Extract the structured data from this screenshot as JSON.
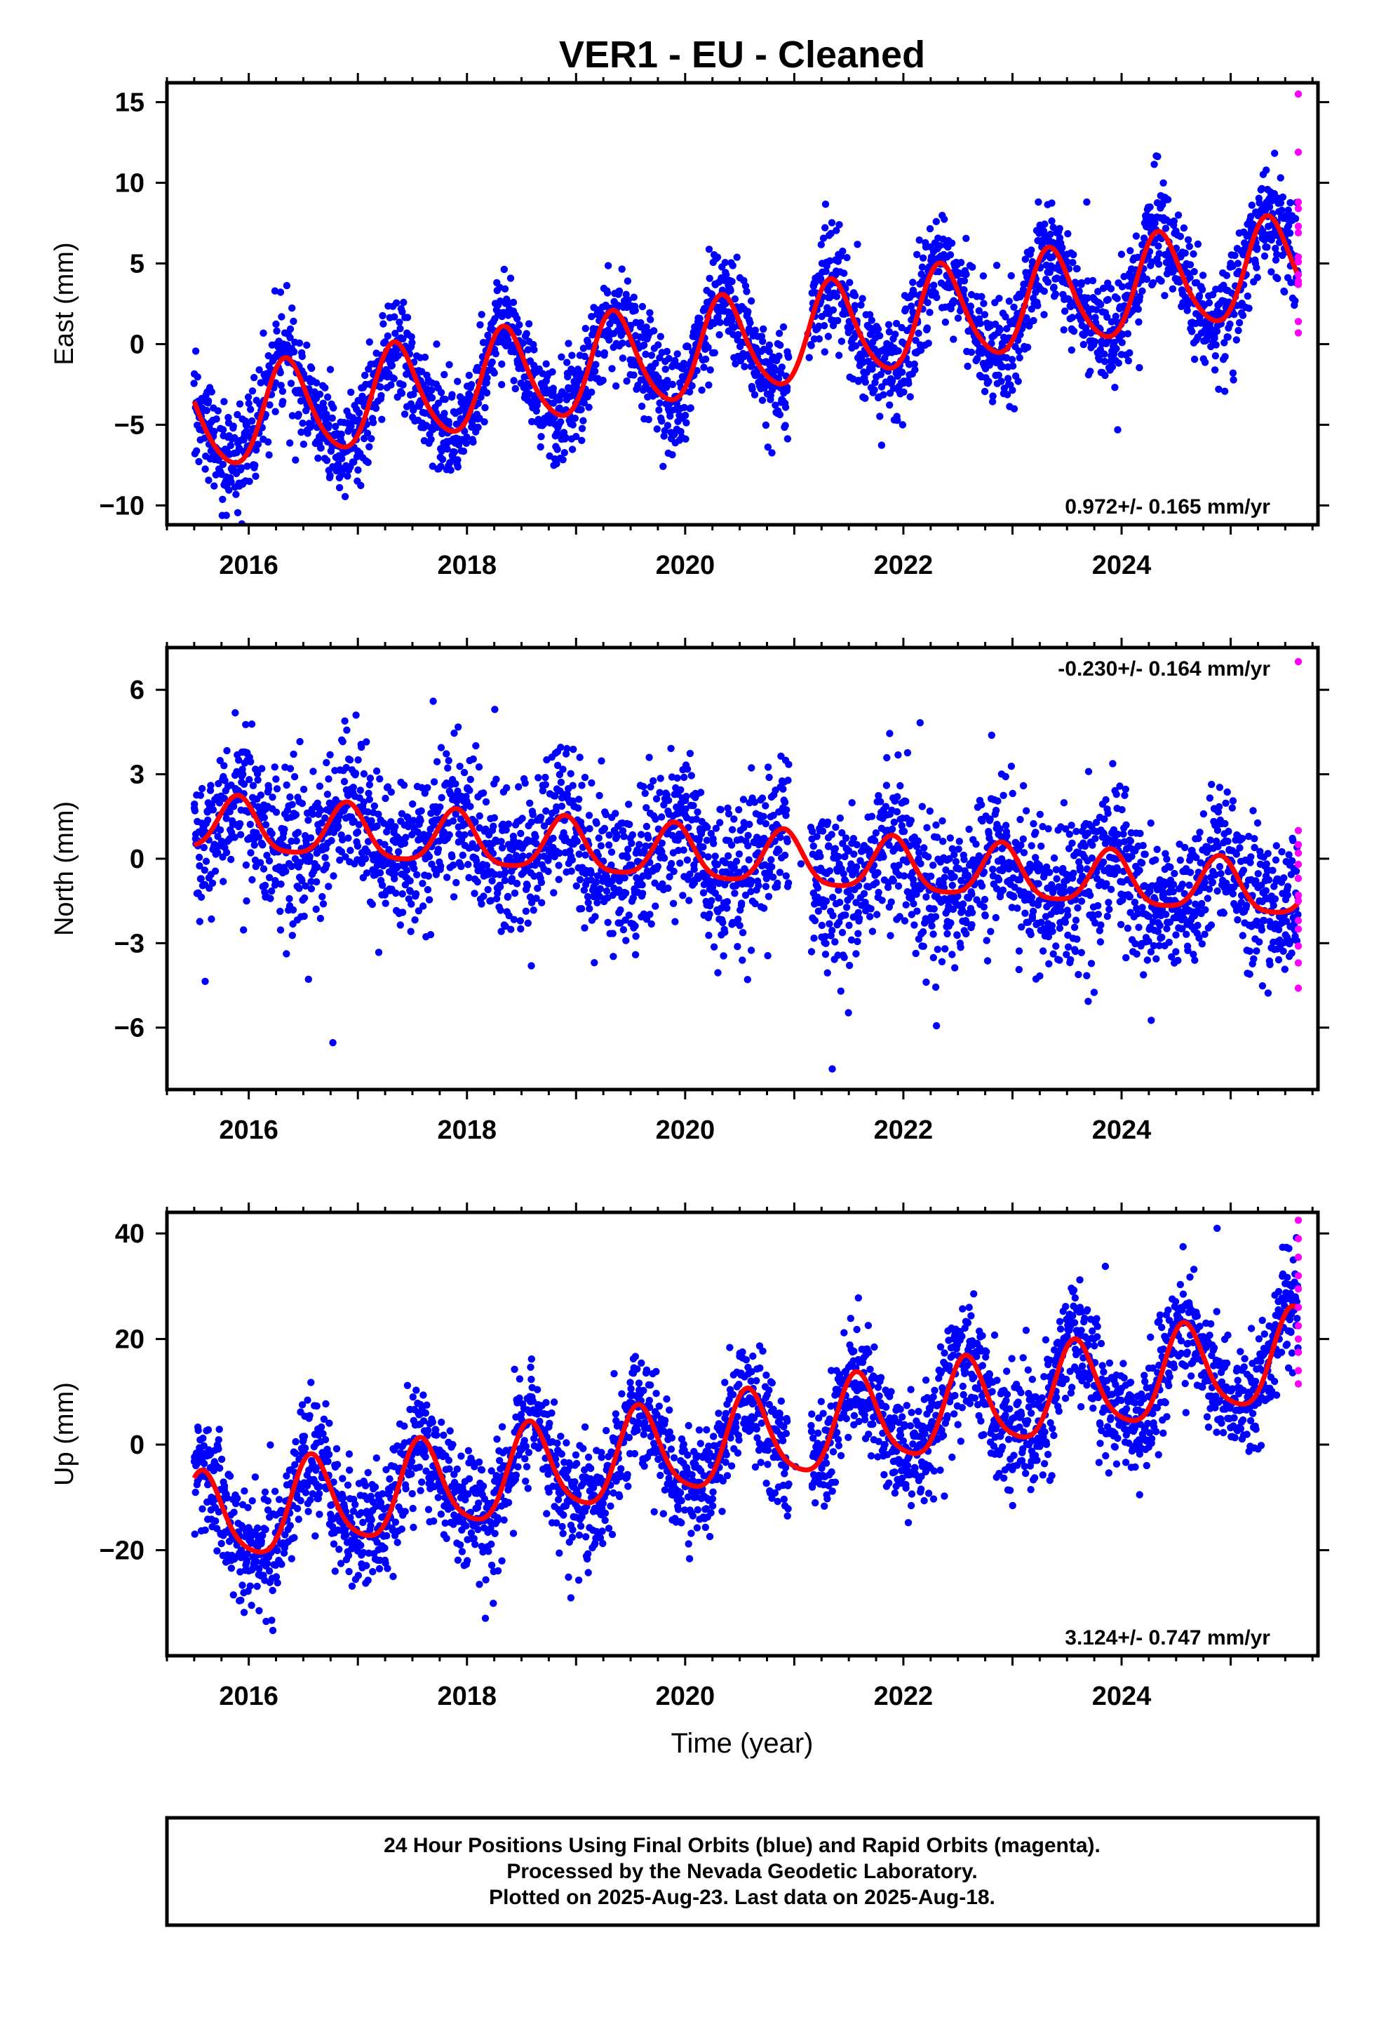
{
  "title": "VER1  - EU - Cleaned",
  "xlabel": "Time (year)",
  "footer": {
    "line1": "24 Hour Positions Using Final Orbits (blue) and Rapid Orbits (magenta).",
    "line2": "Processed by the Nevada Geodetic Laboratory.",
    "line3": "Plotted on 2025-Aug-23. Last data on 2025-Aug-18."
  },
  "colors": {
    "final": "#0000ff",
    "rapid": "#ff00ff",
    "model": "#ff0000",
    "axis": "#000000"
  },
  "chart_data": [
    {
      "type": "scatter",
      "ylabel": "East (mm)",
      "rate_label": "0.972+/- 0.165 mm/yr",
      "rate_position": "bottom-right",
      "xlim": [
        2015.25,
        2025.8
      ],
      "ylim": [
        -11.2,
        16.2
      ],
      "xticks": [
        2016,
        2018,
        2020,
        2022,
        2024
      ],
      "xtick_labels": [
        "2016",
        "2018",
        "2020",
        "2022",
        "2024"
      ],
      "yticks": [
        -10,
        -5,
        0,
        5,
        10,
        15
      ],
      "ytick_labels": [
        "−10",
        "−5",
        "0",
        "5",
        "10",
        "15"
      ],
      "model": {
        "start": 2015.5,
        "end": 2025.62,
        "trend_at_start": -5.0,
        "trend_at_end": 4.9,
        "annual_amplitude": 3.0,
        "annual_peak": 0.35,
        "semiannual_amplitude": 0.4,
        "semiannual_peak": 0.3
      },
      "scatter": {
        "spread": 1.6,
        "count": 2900,
        "gap": [
          2020.95,
          2021.15
        ]
      },
      "rapid_points": {
        "x": 2025.62,
        "values": [
          15.5,
          11.9,
          8.8,
          8.4,
          7.3,
          6.9,
          5.4,
          5.1,
          4.3,
          3.9,
          3.7,
          1.4,
          0.7
        ]
      }
    },
    {
      "type": "scatter",
      "ylabel": "North (mm)",
      "rate_label": "-0.230+/- 0.164 mm/yr",
      "rate_position": "top-right",
      "xlim": [
        2015.25,
        2025.8
      ],
      "ylim": [
        -8.2,
        7.5
      ],
      "xticks": [
        2016,
        2018,
        2020,
        2022,
        2024
      ],
      "xtick_labels": [
        "2016",
        "2018",
        "2020",
        "2022",
        "2024"
      ],
      "yticks": [
        -6,
        -3,
        0,
        3,
        6
      ],
      "ytick_labels": [
        "−6",
        "−3",
        "0",
        "3",
        "6"
      ],
      "model": {
        "start": 2015.5,
        "end": 2025.62,
        "trend_at_start": 1.2,
        "trend_at_end": -1.2,
        "annual_amplitude": 0.95,
        "annual_peak": 0.9,
        "semiannual_amplitude": 0.2,
        "semiannual_peak": 0.4
      },
      "scatter": {
        "spread": 1.3,
        "count": 2900,
        "gap": [
          2020.95,
          2021.15
        ]
      },
      "rapid_points": {
        "x": 2025.62,
        "values": [
          7.0,
          1.0,
          0.5,
          0.2,
          -0.2,
          -0.7,
          -1.3,
          -1.5,
          -2.2,
          -2.5,
          -3.1,
          -3.7,
          -4.6
        ]
      }
    },
    {
      "type": "scatter",
      "ylabel": "Up (mm)",
      "rate_label": "3.124+/- 0.747 mm/yr",
      "rate_position": "bottom-right",
      "xlim": [
        2015.25,
        2025.8
      ],
      "ylim": [
        -40,
        44
      ],
      "xticks": [
        2016,
        2018,
        2020,
        2022,
        2024
      ],
      "xtick_labels": [
        "2016",
        "2018",
        "2020",
        "2022",
        "2024"
      ],
      "yticks": [
        -20,
        0,
        20,
        40
      ],
      "ytick_labels": [
        "−20",
        "0",
        "20",
        "40"
      ],
      "model": {
        "start": 2015.5,
        "end": 2025.62,
        "trend_at_start": -15.0,
        "trend_at_end": 16.5,
        "annual_amplitude": 8.5,
        "annual_peak": 0.58,
        "semiannual_amplitude": 1.5,
        "semiannual_peak": 0.55
      },
      "scatter": {
        "spread": 5.5,
        "count": 2900,
        "gap": [
          2020.95,
          2021.15
        ]
      },
      "rapid_points": {
        "x": 2025.62,
        "values": [
          42.5,
          39.0,
          35.5,
          32.0,
          29.5,
          26.0,
          22.5,
          20.0,
          17.5,
          14.0,
          11.5
        ]
      }
    }
  ]
}
